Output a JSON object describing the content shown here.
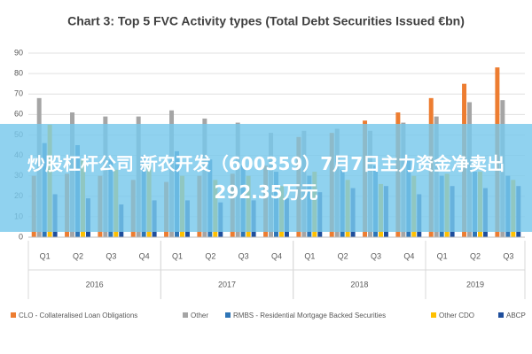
{
  "chart_data": {
    "type": "bar",
    "title": "Chart 3: Top 5 FVC Activity types (Total Debt Securities Issued €bn)",
    "categories": [
      "Q1",
      "Q2",
      "Q3",
      "Q4",
      "Q1",
      "Q2",
      "Q3",
      "Q4",
      "Q1",
      "Q2",
      "Q3",
      "Q4",
      "Q1",
      "Q2",
      "Q3"
    ],
    "groups": [
      {
        "name": "2016",
        "count": 4
      },
      {
        "name": "2017",
        "count": 4
      },
      {
        "name": "2018",
        "count": 4
      },
      {
        "name": "2019",
        "count": 3
      }
    ],
    "series": [
      {
        "name": "CLO - Collateralised Loan Obligations",
        "color": "#ed7d31",
        "values": [
          30,
          31,
          30,
          28,
          27,
          30,
          31,
          35,
          49,
          51,
          57,
          61,
          68,
          75,
          83
        ]
      },
      {
        "name": "Other",
        "color": "#a5a5a5",
        "values": [
          68,
          61,
          59,
          59,
          62,
          58,
          56,
          51,
          52,
          53,
          52,
          56,
          59,
          66,
          67
        ]
      },
      {
        "name": "RMBS - Residential Mortgage Backed Securities",
        "color": "#2e75b6",
        "values": [
          46,
          45,
          38,
          40,
          42,
          38,
          35,
          32,
          30,
          33,
          35,
          38,
          30,
          32,
          30
        ]
      },
      {
        "name": "Other CDO",
        "color": "#ffc000",
        "values": [
          55,
          38,
          33,
          35,
          30,
          28,
          30,
          25,
          32,
          28,
          26,
          30,
          31,
          32,
          28
        ]
      },
      {
        "name": "ABCP",
        "color": "#1f4e9c",
        "values": [
          21,
          19,
          16,
          18,
          18,
          17,
          18,
          19,
          22,
          24,
          25,
          21,
          25,
          24,
          25
        ]
      }
    ],
    "ylim": [
      0,
      90
    ],
    "yticks": [
      0,
      10,
      20,
      30,
      40,
      50,
      60,
      70,
      80,
      90
    ],
    "grid": true,
    "legend": "bottom"
  },
  "banner": {
    "text": "炒股杠杆公司 新农开发（600359）7月7日主力资金净卖出292.35万元"
  }
}
